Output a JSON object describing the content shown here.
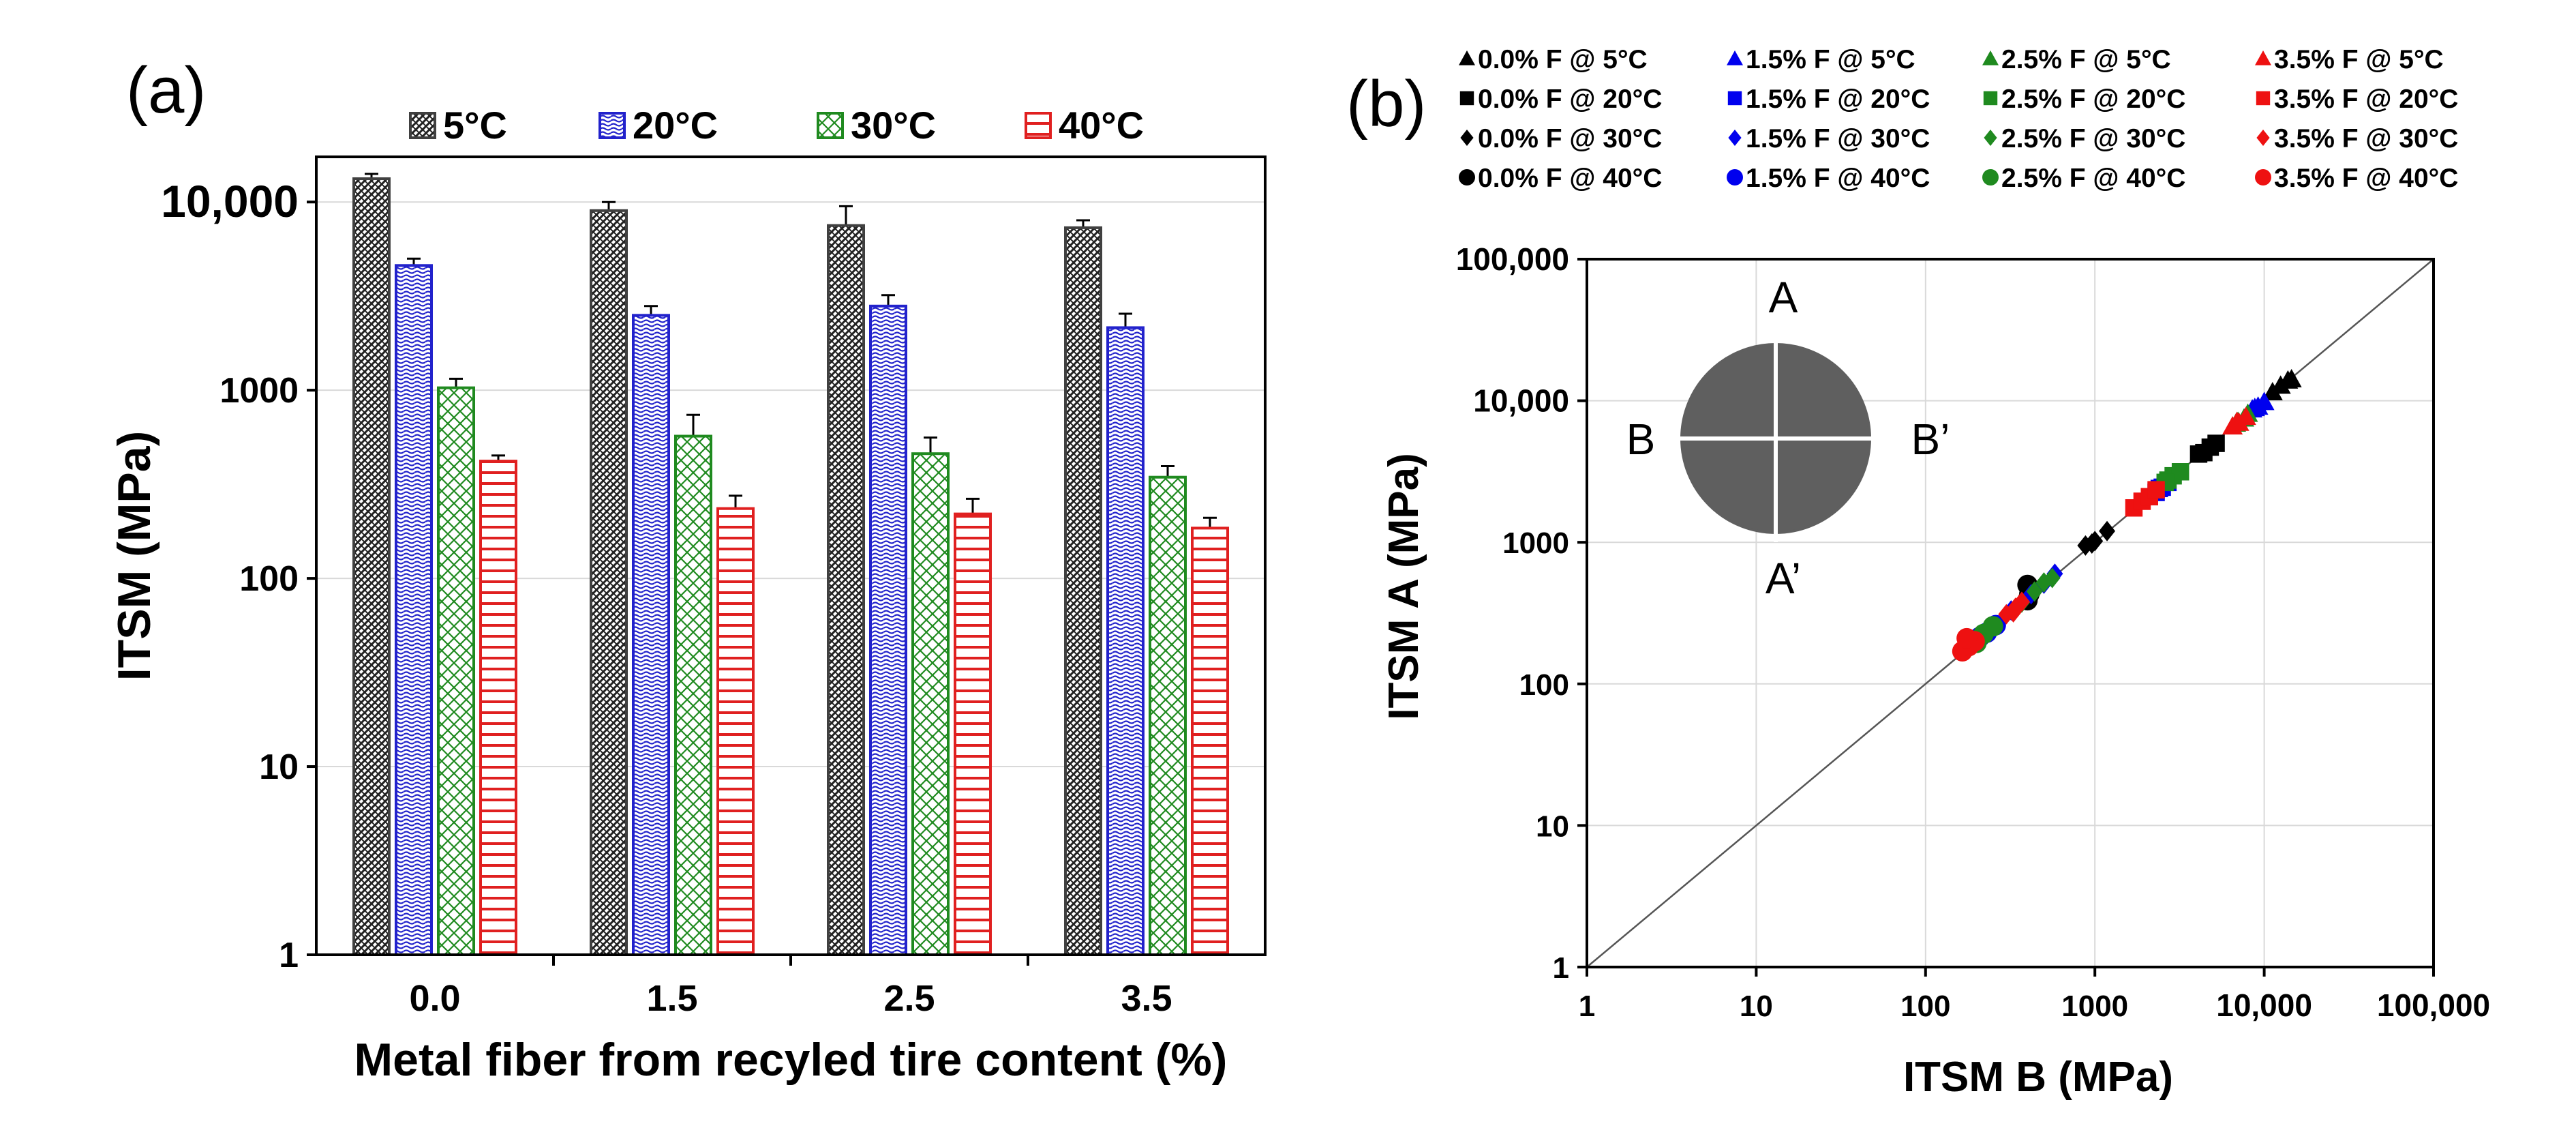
{
  "chart_data": [
    {
      "id": "a",
      "type": "bar",
      "panel_label": "(a)",
      "scale": "log",
      "xlabel": "Metal fiber from recyled tire content (%)",
      "ylabel": "ITSM (MPa)",
      "ylim": [
        1,
        20000
      ],
      "y_ticks": [
        {
          "value": 1,
          "label": "1"
        },
        {
          "value": 10,
          "label": "10"
        },
        {
          "value": 100,
          "label": "100"
        },
        {
          "value": 1000,
          "label": "1000"
        },
        {
          "value": 10000,
          "label": "10,000"
        }
      ],
      "categories": [
        "0.0",
        "1.5",
        "2.5",
        "3.5"
      ],
      "legend_position": "top",
      "grid": true,
      "series": [
        {
          "name": "5°C",
          "color": "#404040",
          "pattern": "dense-crosshatch",
          "values": [
            13300,
            9000,
            7500,
            7300
          ],
          "errors": [
            800,
            1000,
            2000,
            700
          ]
        },
        {
          "name": "20°C",
          "color": "#2222cc",
          "pattern": "blue-weave",
          "values": [
            4600,
            2500,
            2800,
            2150
          ],
          "errors": [
            400,
            300,
            400,
            400
          ]
        },
        {
          "name": "30°C",
          "color": "#1f8a1f",
          "pattern": "green-crosshatch",
          "values": [
            1030,
            570,
            460,
            345
          ],
          "errors": [
            120,
            170,
            100,
            50
          ]
        },
        {
          "name": "40°C",
          "color": "#e02020",
          "pattern": "red-horizontal",
          "values": [
            420,
            235,
            220,
            185
          ],
          "errors": [
            30,
            40,
            45,
            25
          ]
        }
      ]
    },
    {
      "id": "b",
      "type": "scatter",
      "panel_label": "(b)",
      "scale": "log-log",
      "xlabel": "ITSM B (MPa)",
      "ylabel": "ITSM A (MPa)",
      "xlim": [
        1,
        100000
      ],
      "ylim": [
        1,
        100000
      ],
      "x_ticks": [
        {
          "value": 1,
          "label": "1"
        },
        {
          "value": 10,
          "label": "10"
        },
        {
          "value": 100,
          "label": "100"
        },
        {
          "value": 1000,
          "label": "1000"
        },
        {
          "value": 10000,
          "label": "10,000"
        },
        {
          "value": 100000,
          "label": "100,000"
        }
      ],
      "y_ticks": [
        {
          "value": 1,
          "label": "1"
        },
        {
          "value": 10,
          "label": "10"
        },
        {
          "value": 100,
          "label": "100"
        },
        {
          "value": 1000,
          "label": "1000"
        },
        {
          "value": 10000,
          "label": "10,000"
        },
        {
          "value": 100000,
          "label": "100,000"
        }
      ],
      "equality_line": true,
      "grid": true,
      "legend_position": "top",
      "inset": {
        "top": "A",
        "bottom": "A’",
        "left": "B",
        "right": "B’"
      },
      "series": [
        {
          "name": "0.0% F @ 5°C",
          "color": "#000000",
          "marker": "triangle",
          "points": [
            [
              12500,
              12800
            ],
            [
              13800,
              13900
            ],
            [
              11200,
              11500
            ],
            [
              14500,
              14200
            ]
          ]
        },
        {
          "name": "0.0% F @ 20°C",
          "color": "#000000",
          "marker": "square",
          "points": [
            [
              4400,
              4300
            ],
            [
              4800,
              4700
            ],
            [
              5200,
              5000
            ],
            [
              4100,
              4200
            ]
          ]
        },
        {
          "name": "0.0% F @ 30°C",
          "color": "#000000",
          "marker": "diamond",
          "points": [
            [
              880,
              950
            ],
            [
              1000,
              1020
            ],
            [
              1180,
              1200
            ],
            [
              960,
              980
            ]
          ]
        },
        {
          "name": "0.0% F @ 40°C",
          "color": "#000000",
          "marker": "circle",
          "points": [
            [
              400,
              390
            ],
            [
              410,
              430
            ],
            [
              420,
              460
            ],
            [
              400,
              500
            ]
          ]
        },
        {
          "name": "1.5% F @ 5°C",
          "color": "#0000ee",
          "marker": "triangle",
          "points": [
            [
              8500,
              8700
            ],
            [
              9200,
              9100
            ],
            [
              10000,
              9800
            ],
            [
              8800,
              8900
            ]
          ]
        },
        {
          "name": "1.5% F @ 20°C",
          "color": "#0000ee",
          "marker": "square",
          "points": [
            [
              2300,
              2250
            ],
            [
              2500,
              2450
            ],
            [
              2700,
              2650
            ],
            [
              2400,
              2400
            ]
          ]
        },
        {
          "name": "1.5% F @ 30°C",
          "color": "#0000ee",
          "marker": "diamond",
          "points": [
            [
              320,
              330
            ],
            [
              420,
              430
            ],
            [
              500,
              510
            ],
            [
              580,
              600
            ]
          ]
        },
        {
          "name": "1.5% F @ 40°C",
          "color": "#0000ee",
          "marker": "circle",
          "points": [
            [
              200,
              200
            ],
            [
              230,
              230
            ],
            [
              260,
              260
            ],
            [
              210,
              215
            ]
          ]
        },
        {
          "name": "2.5% F @ 5°C",
          "color": "#1f8a1f",
          "marker": "triangle",
          "points": [
            [
              7000,
              7100
            ],
            [
              7600,
              7500
            ],
            [
              8000,
              8100
            ],
            [
              6800,
              6900
            ]
          ]
        },
        {
          "name": "2.5% F @ 20°C",
          "color": "#1f8a1f",
          "marker": "square",
          "points": [
            [
              2700,
              2750
            ],
            [
              2900,
              2950
            ],
            [
              3200,
              3150
            ],
            [
              2600,
              2650
            ]
          ]
        },
        {
          "name": "2.5% F @ 30°C",
          "color": "#1f8a1f",
          "marker": "diamond",
          "points": [
            [
              370,
              375
            ],
            [
              440,
              450
            ],
            [
              500,
              520
            ],
            [
              560,
              560
            ]
          ]
        },
        {
          "name": "2.5% F @ 40°C",
          "color": "#1f8a1f",
          "marker": "circle",
          "points": [
            [
              180,
              185
            ],
            [
              220,
              225
            ],
            [
              250,
              255
            ],
            [
              200,
              195
            ]
          ]
        },
        {
          "name": "3.5% F @ 5°C",
          "color": "#ee1111",
          "marker": "triangle",
          "points": [
            [
              6500,
              6600
            ],
            [
              7100,
              7000
            ],
            [
              7800,
              7700
            ],
            [
              6900,
              7100
            ]
          ]
        },
        {
          "name": "3.5% F @ 20°C",
          "color": "#ee1111",
          "marker": "square",
          "points": [
            [
              1700,
              1750
            ],
            [
              1900,
              1950
            ],
            [
              2100,
              2100
            ],
            [
              2300,
              2350
            ]
          ]
        },
        {
          "name": "3.5% F @ 30°C",
          "color": "#ee1111",
          "marker": "diamond",
          "points": [
            [
              300,
              310
            ],
            [
              340,
              345
            ],
            [
              370,
              380
            ],
            [
              330,
              320
            ]
          ]
        },
        {
          "name": "3.5% F @ 40°C",
          "color": "#ee1111",
          "marker": "circle",
          "points": [
            [
              165,
              170
            ],
            [
              180,
              185
            ],
            [
              195,
              200
            ],
            [
              175,
              210
            ]
          ]
        }
      ]
    }
  ]
}
